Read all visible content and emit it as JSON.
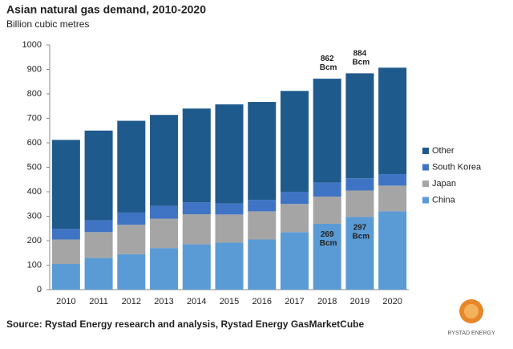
{
  "chart_data": {
    "type": "stacked_bar",
    "title": "Asian natural gas demand, 2010-2020",
    "subtitle": "Billion cubic metres",
    "source": "Source: Rystad Energy research and analysis, Rystad Energy GasMarketCube",
    "logo_text": "RYSTAD ENERGY",
    "categories": [
      "2010",
      "2011",
      "2012",
      "2013",
      "2014",
      "2015",
      "2016",
      "2017",
      "2018",
      "2019",
      "2020"
    ],
    "series": [
      {
        "name": "China",
        "color": "#5b9bd5",
        "values": [
          105,
          130,
          145,
          170,
          185,
          192,
          205,
          235,
          269,
          297,
          320
        ],
        "value_labels": [
          null,
          null,
          null,
          null,
          null,
          null,
          null,
          null,
          "269 Bcm",
          "297 Bcm",
          null
        ]
      },
      {
        "name": "Japan",
        "color": "#a5a5a5",
        "values": [
          100,
          105,
          120,
          120,
          123,
          115,
          115,
          115,
          111,
          108,
          105
        ]
      },
      {
        "name": "South Korea",
        "color": "#3f74c4",
        "values": [
          43,
          48,
          50,
          52,
          49,
          45,
          47,
          50,
          57,
          50,
          47
        ]
      },
      {
        "name": "Other",
        "color": "#1f5a8c",
        "values": [
          364,
          367,
          375,
          372,
          383,
          405,
          400,
          412,
          425,
          429,
          435
        ]
      }
    ],
    "total_labels": [
      null,
      null,
      null,
      null,
      null,
      null,
      null,
      null,
      "862 Bcm",
      "884 Bcm",
      null
    ],
    "ylim": [
      0,
      1000
    ],
    "yticks": [
      0,
      100,
      200,
      300,
      400,
      500,
      600,
      700,
      800,
      900,
      1000
    ],
    "legend": "right"
  }
}
